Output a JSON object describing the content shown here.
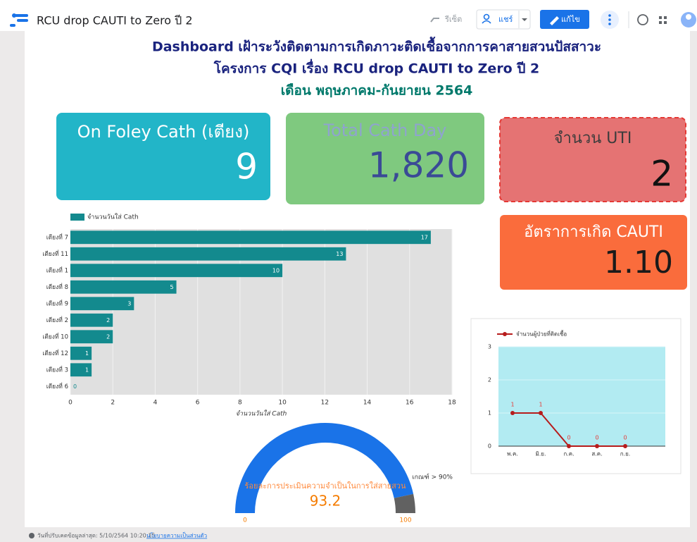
{
  "toolbar": {
    "title": "RCU drop CAUTI to Zero ปี 2",
    "reset": "รีเซ็ต",
    "share": "แชร์",
    "edit": "แก้ไข"
  },
  "header": {
    "line1": "Dashboard เฝ้าระวังติดตามการเกิดภาวะติดเชื้อจากการคาสายสวนปัสสาวะ",
    "line2": "โครงการ CQI เรื่อง RCU drop CAUTI to Zero ปี 2",
    "line3": "เดือน พฤษภาคม-กันยายน 2564"
  },
  "scorecards": [
    {
      "label": "On Foley Cath (เตียง)",
      "value": "9"
    },
    {
      "label": "Total Cath Day",
      "value": "1,820"
    },
    {
      "label": "จำนวน UTI",
      "value": "2"
    },
    {
      "label": "อัตราการเกิด CAUTI",
      "value": "1.10"
    }
  ],
  "chart_data": [
    {
      "type": "bar",
      "orientation": "horizontal",
      "categories": [
        "เตียงที่ 7",
        "เตียงที่ 11",
        "เตียงที่ 1",
        "เตียงที่ 8",
        "เตียงที่ 9",
        "เตียงที่ 2",
        "เตียงที่ 10",
        "เตียงที่ 12",
        "เตียงที่ 3",
        "เตียงที่ 6"
      ],
      "series": [
        {
          "name": "จำนวนวันใส่ Cath",
          "color": "#138a8e",
          "values": [
            17,
            13,
            10,
            5,
            3,
            2,
            2,
            1,
            1,
            0
          ]
        }
      ],
      "x_label": "จำนวนวันใส่ Cath",
      "xlim": [
        0,
        18
      ],
      "xticks": [
        0,
        2,
        4,
        6,
        8,
        10,
        12,
        14,
        16,
        18
      ],
      "grid": true
    },
    {
      "type": "line",
      "categories": [
        "พ.ค.",
        "มิ.ย.",
        "ก.ค.",
        "ส.ค.",
        "ก.ย."
      ],
      "series": [
        {
          "name": "จำนวนผู้ป่วยที่ติดเชื้อ",
          "color": "#b71c1c",
          "values": [
            1,
            1,
            0,
            0,
            0
          ]
        }
      ],
      "ylim": [
        0,
        3
      ],
      "yticks": [
        0,
        1,
        2,
        3
      ],
      "grid": true
    },
    {
      "type": "gauge",
      "title": "ร้อยละการประเมินความจำเป็นในการใส่สายสวน",
      "value": 93.2,
      "range": [
        0,
        100
      ],
      "target_label": "เกณฑ์ > 90%",
      "color": "#1a73e8"
    }
  ],
  "footer": {
    "updated": "วันที่ปรับเคตข้อมูลล่าสุด: 5/10/2564 10:20:15",
    "privacy": "นโยบายความเป็นส่วนตัว"
  }
}
